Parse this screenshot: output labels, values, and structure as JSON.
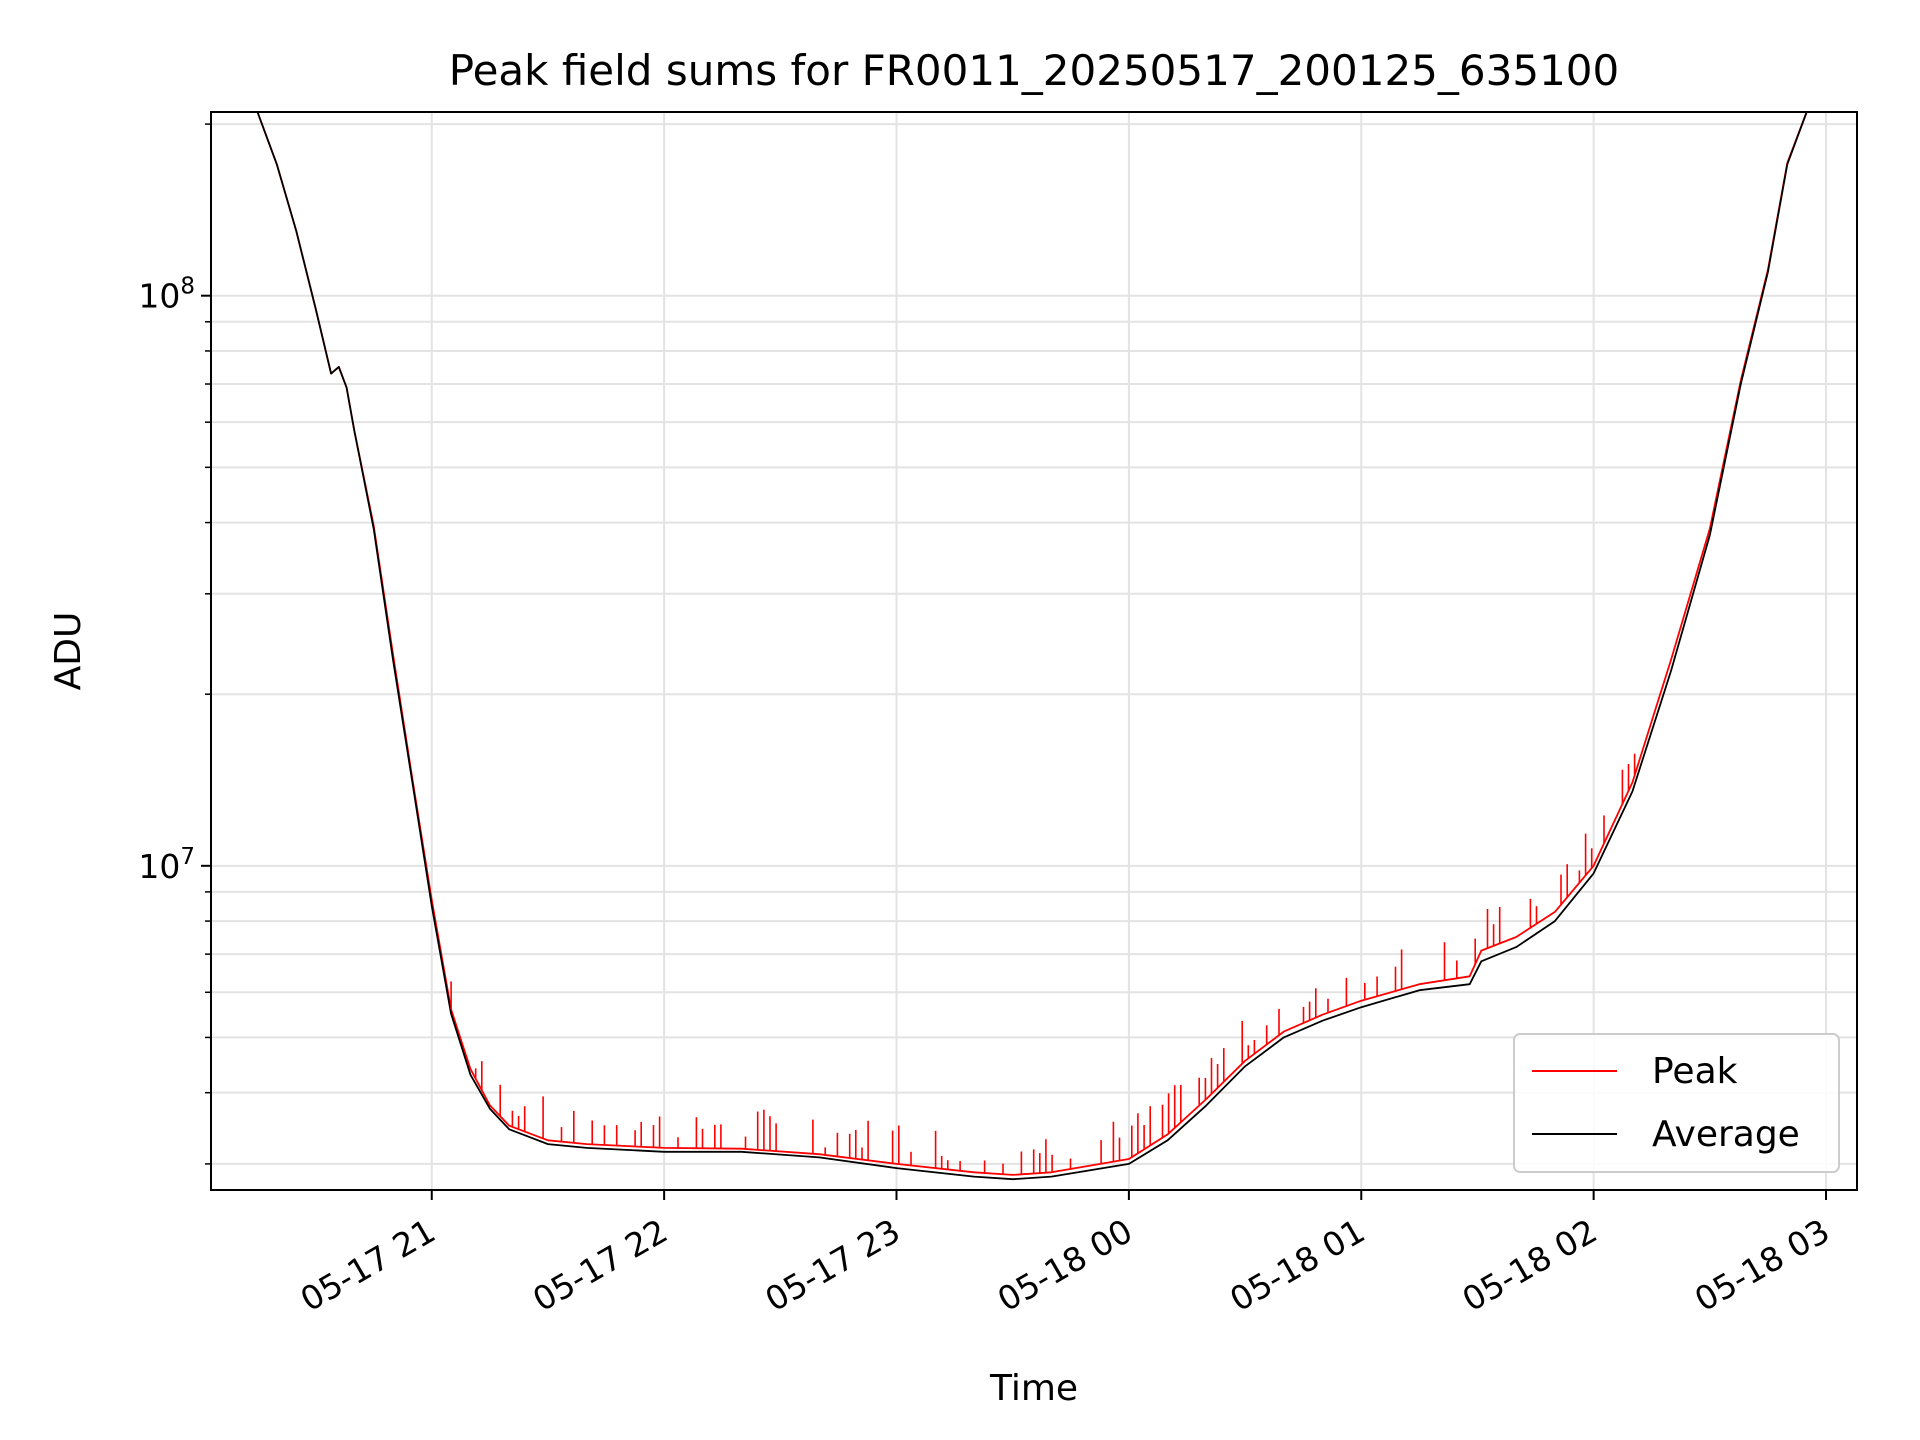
{
  "chart_data": {
    "type": "line",
    "title": "Peak field sums for FR0011_20250517_200125_635100",
    "xlabel": "Time",
    "ylabel": "ADU",
    "yscale": "log",
    "ylim": [
      2700000,
      210000000
    ],
    "xlim": [
      "2025-05-17 20:03",
      "2025-05-18 03:08"
    ],
    "grid": true,
    "legend_position": "lower-right",
    "x_ticks": [
      {
        "value": "2025-05-17 21:00",
        "label": "05-17 21"
      },
      {
        "value": "2025-05-17 22:00",
        "label": "05-17 22"
      },
      {
        "value": "2025-05-17 23:00",
        "label": "05-17 23"
      },
      {
        "value": "2025-05-18 00:00",
        "label": "05-18 00"
      },
      {
        "value": "2025-05-18 01:00",
        "label": "05-18 01"
      },
      {
        "value": "2025-05-18 02:00",
        "label": "05-18 02"
      },
      {
        "value": "2025-05-18 03:00",
        "label": "05-18 03"
      }
    ],
    "y_ticks": [
      {
        "value": 10000000,
        "base": "10",
        "exp": "7"
      },
      {
        "value": 100000000,
        "base": "10",
        "exp": "8"
      }
    ],
    "x": [
      "2025-05-17 20:15",
      "2025-05-17 20:20",
      "2025-05-17 20:25",
      "2025-05-17 20:30",
      "2025-05-17 20:34",
      "2025-05-17 20:36",
      "2025-05-17 20:38",
      "2025-05-17 20:40",
      "2025-05-17 20:45",
      "2025-05-17 20:50",
      "2025-05-17 20:55",
      "2025-05-17 21:00",
      "2025-05-17 21:05",
      "2025-05-17 21:10",
      "2025-05-17 21:15",
      "2025-05-17 21:20",
      "2025-05-17 21:30",
      "2025-05-17 21:40",
      "2025-05-17 22:00",
      "2025-05-17 22:20",
      "2025-05-17 22:40",
      "2025-05-17 23:00",
      "2025-05-17 23:20",
      "2025-05-17 23:30",
      "2025-05-17 23:40",
      "2025-05-18 00:00",
      "2025-05-18 00:10",
      "2025-05-18 00:20",
      "2025-05-18 00:30",
      "2025-05-18 00:40",
      "2025-05-18 00:50",
      "2025-05-18 01:00",
      "2025-05-18 01:15",
      "2025-05-18 01:28",
      "2025-05-18 01:31",
      "2025-05-18 01:40",
      "2025-05-18 01:50",
      "2025-05-18 02:00",
      "2025-05-18 02:10",
      "2025-05-18 02:20",
      "2025-05-18 02:30",
      "2025-05-18 02:38",
      "2025-05-18 02:45",
      "2025-05-18 02:50",
      "2025-05-18 02:55"
    ],
    "series": [
      {
        "name": "Average",
        "color": "#000000",
        "values": [
          210000000,
          170000000,
          130000000,
          95000000,
          73000000,
          75000000,
          69000000,
          58000000,
          39000000,
          23000000,
          14000000,
          8500000,
          5500000,
          4300000,
          3750000,
          3450000,
          3250000,
          3200000,
          3150000,
          3150000,
          3080000,
          2950000,
          2850000,
          2820000,
          2850000,
          3000000,
          3300000,
          3800000,
          4450000,
          5000000,
          5350000,
          5650000,
          6050000,
          6200000,
          6800000,
          7200000,
          8000000,
          9700000,
          13500000,
          22000000,
          38000000,
          70000000,
          110000000,
          170000000,
          210000000
        ]
      },
      {
        "name": "Peak",
        "color": "#ff0000",
        "values": [
          210000000,
          170000000,
          130000000,
          95000000,
          73000000,
          75000000,
          69000000,
          58000000,
          39500000,
          23500000,
          14200000,
          8700000,
          5600000,
          4400000,
          3800000,
          3500000,
          3300000,
          3250000,
          3200000,
          3190000,
          3120000,
          3000000,
          2900000,
          2870000,
          2900000,
          3060000,
          3380000,
          3900000,
          4550000,
          5120000,
          5480000,
          5800000,
          6200000,
          6400000,
          7100000,
          7500000,
          8300000,
          10000000,
          14000000,
          23000000,
          39000000,
          71000000,
          111000000,
          171000000,
          210000000
        ]
      }
    ]
  }
}
